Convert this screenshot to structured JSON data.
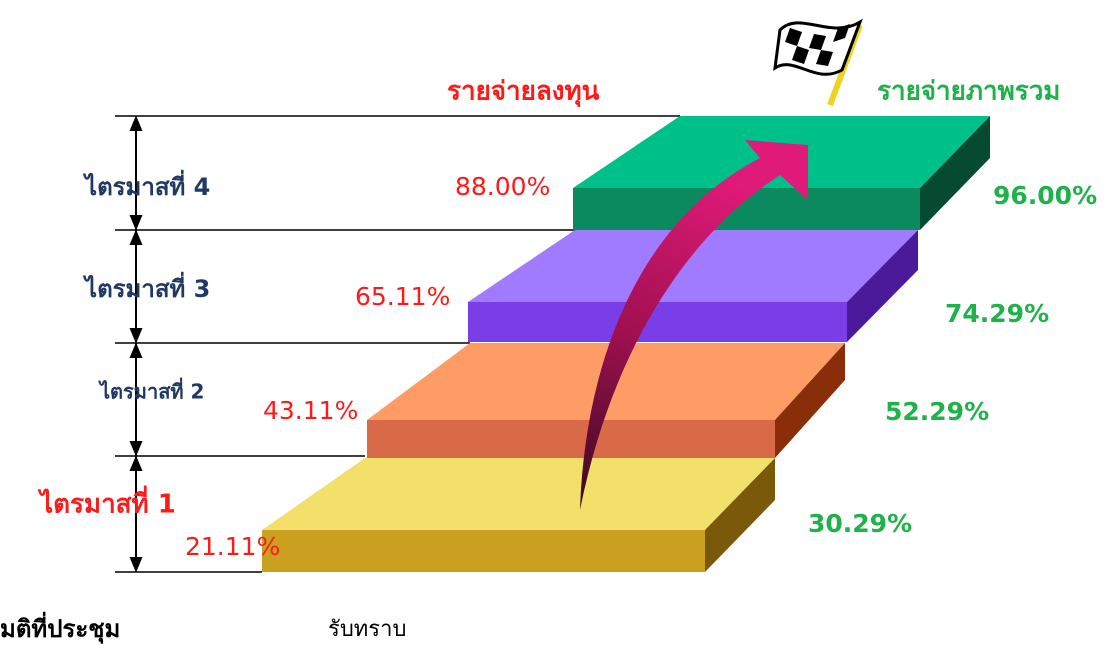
{
  "headings": {
    "capital": "รายจ่ายลงทุน",
    "overall": "รายจ่ายภาพรวม"
  },
  "steps": [
    {
      "quarter": "ไตรมาสที่ 1",
      "capital": "21.11%",
      "overall": "30.29%"
    },
    {
      "quarter": "ไตรมาสที่ 2",
      "capital": "43.11%",
      "overall": "52.29%"
    },
    {
      "quarter": "ไตรมาสที่ 3",
      "capital": "65.11%",
      "overall": "74.29%"
    },
    {
      "quarter": "ไตรมาสที่ 4",
      "capital": "88.00%",
      "overall": "96.00%"
    }
  ],
  "footer": {
    "label": "มติที่ประชุม",
    "value": "รับทราบ"
  }
}
